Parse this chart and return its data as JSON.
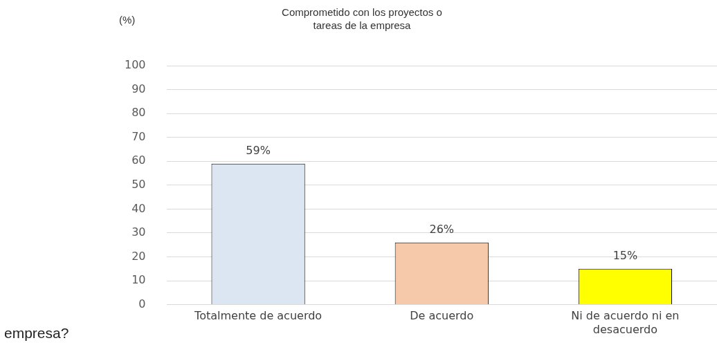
{
  "chart_data": {
    "type": "bar",
    "title": "Comprometido con los proyectos o tareas de la empresa",
    "ylabel": "(%)",
    "categories": [
      "Totalmente de acuerdo",
      "De acuerdo",
      "Ni de acuerdo ni en desacuerdo"
    ],
    "values": [
      59,
      26,
      15
    ],
    "colors": [
      "#dce6f2",
      "#f6c9ab",
      "#ffff00"
    ],
    "value_labels": [
      "59%",
      "26%",
      "15%"
    ],
    "ylim": [
      0,
      100
    ],
    "yticks": [
      0,
      10,
      20,
      30,
      40,
      50,
      60,
      70,
      80,
      90,
      100
    ],
    "grid": "y",
    "annotations": [
      "empresa?"
    ]
  }
}
